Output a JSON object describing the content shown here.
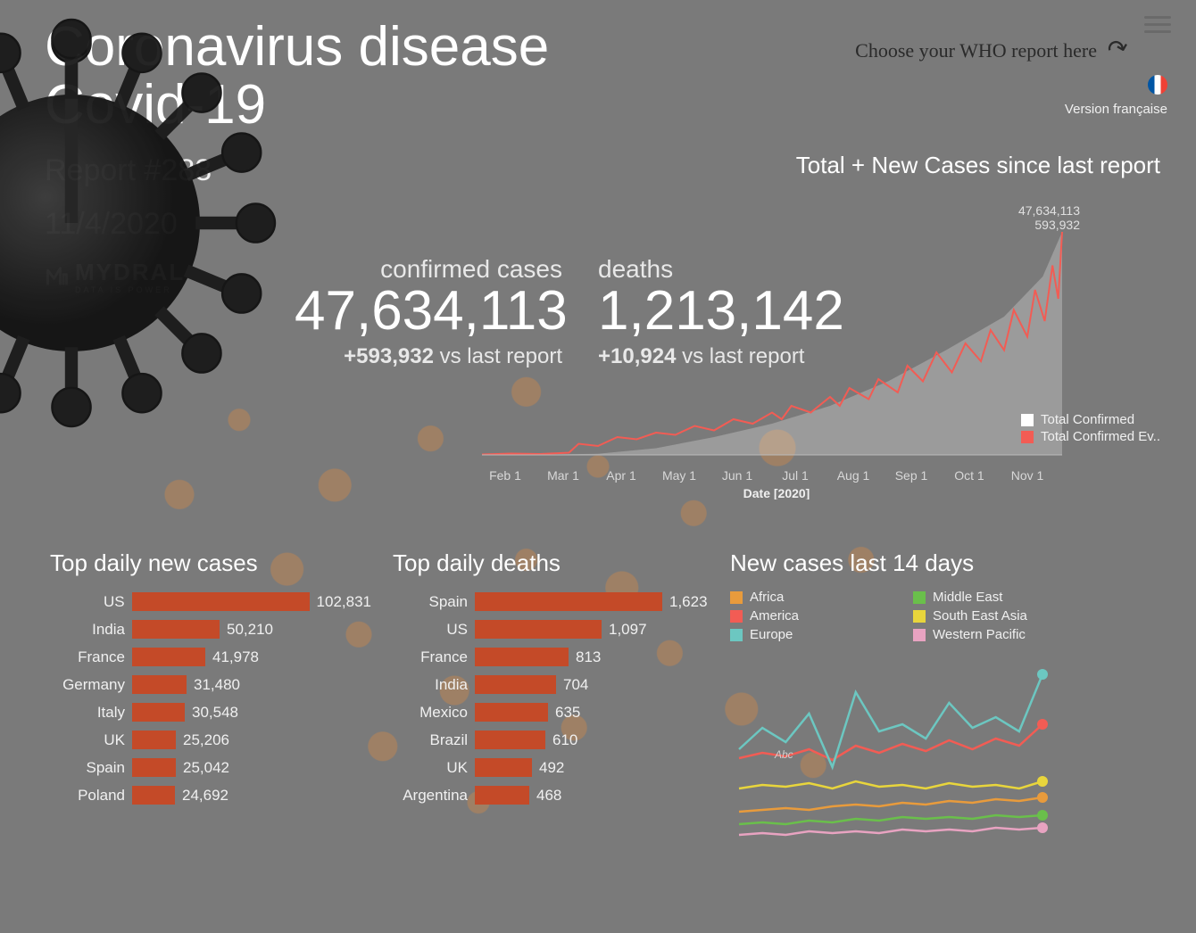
{
  "header": {
    "title_line1": "Coronavirus disease",
    "title_line2": "Covid-19",
    "report": "Report #288",
    "date": "11/4/2020",
    "who_link": "Choose your WHO report here",
    "lang_label": "Version française",
    "logo_text": "MYDRAL",
    "logo_tagline": "DATA IS POWER"
  },
  "metrics": {
    "confirmed": {
      "label": "confirmed cases",
      "value": "47,634,113",
      "delta": "+593,932",
      "delta_suffix": "vs last report"
    },
    "deaths": {
      "label": "deaths",
      "value": "1,213,142",
      "delta": "+10,924",
      "delta_suffix": "vs last report"
    }
  },
  "cases_chart": {
    "title": "Total + New Cases since last report",
    "type": "area+line",
    "x_axis_label": "Date [2020]",
    "x_ticks": [
      "Feb 1",
      "Mar 1",
      "Apr 1",
      "May 1",
      "Jun 1",
      "Jul 1",
      "Aug 1",
      "Sep 1",
      "Oct 1",
      "Nov 1"
    ],
    "end_labels": [
      "47,634,113",
      "593,932"
    ],
    "legend": [
      {
        "label": "Total Confirmed",
        "color": "#ffffff"
      },
      {
        "label": "Total Confirmed Ev..",
        "color": "#f25c54"
      }
    ],
    "area_color": "#ffffff",
    "area_opacity": 0.25,
    "line_color": "#f25c54",
    "line_width": 2,
    "ylim": [
      0,
      47634113
    ],
    "area_points": [
      [
        0,
        0
      ],
      [
        30,
        0.001
      ],
      [
        60,
        0.005
      ],
      [
        90,
        0.03
      ],
      [
        120,
        0.08
      ],
      [
        150,
        0.14
      ],
      [
        180,
        0.22
      ],
      [
        210,
        0.33
      ],
      [
        240,
        0.47
      ],
      [
        270,
        0.62
      ],
      [
        290,
        0.8
      ],
      [
        300,
        1.0
      ]
    ],
    "line_points": [
      [
        0,
        0.002
      ],
      [
        15,
        0.006
      ],
      [
        30,
        0.004
      ],
      [
        45,
        0.01
      ],
      [
        50,
        0.05
      ],
      [
        60,
        0.04
      ],
      [
        70,
        0.08
      ],
      [
        80,
        0.07
      ],
      [
        90,
        0.1
      ],
      [
        100,
        0.09
      ],
      [
        110,
        0.13
      ],
      [
        120,
        0.11
      ],
      [
        130,
        0.16
      ],
      [
        140,
        0.14
      ],
      [
        150,
        0.19
      ],
      [
        155,
        0.16
      ],
      [
        160,
        0.22
      ],
      [
        170,
        0.19
      ],
      [
        180,
        0.26
      ],
      [
        185,
        0.22
      ],
      [
        190,
        0.3
      ],
      [
        200,
        0.25
      ],
      [
        205,
        0.34
      ],
      [
        215,
        0.28
      ],
      [
        220,
        0.4
      ],
      [
        228,
        0.33
      ],
      [
        235,
        0.46
      ],
      [
        243,
        0.37
      ],
      [
        250,
        0.5
      ],
      [
        258,
        0.42
      ],
      [
        263,
        0.56
      ],
      [
        270,
        0.47
      ],
      [
        275,
        0.65
      ],
      [
        282,
        0.53
      ],
      [
        286,
        0.74
      ],
      [
        291,
        0.6
      ],
      [
        295,
        0.85
      ],
      [
        298,
        0.7
      ],
      [
        300,
        1.0
      ]
    ]
  },
  "top_cases": {
    "title": "Top daily new cases",
    "type": "bar-horizontal",
    "bar_color": "#c44a28",
    "max": 102831,
    "rows": [
      {
        "label": "US",
        "value": 102831,
        "text": "102,831"
      },
      {
        "label": "India",
        "value": 50210,
        "text": "50,210"
      },
      {
        "label": "France",
        "value": 41978,
        "text": "41,978"
      },
      {
        "label": "Germany",
        "value": 31480,
        "text": "31,480"
      },
      {
        "label": "Italy",
        "value": 30548,
        "text": "30,548"
      },
      {
        "label": "UK",
        "value": 25206,
        "text": "25,206"
      },
      {
        "label": "Spain",
        "value": 25042,
        "text": "25,042"
      },
      {
        "label": "Poland",
        "value": 24692,
        "text": "24,692"
      }
    ]
  },
  "top_deaths": {
    "title": "Top daily deaths",
    "type": "bar-horizontal",
    "bar_color": "#c44a28",
    "max": 1623,
    "rows": [
      {
        "label": "Spain",
        "value": 1623,
        "text": "1,623"
      },
      {
        "label": "US",
        "value": 1097,
        "text": "1,097"
      },
      {
        "label": "France",
        "value": 813,
        "text": "813"
      },
      {
        "label": "India",
        "value": 704,
        "text": "704"
      },
      {
        "label": "Mexico",
        "value": 635,
        "text": "635"
      },
      {
        "label": "Brazil",
        "value": 610,
        "text": "610"
      },
      {
        "label": "UK",
        "value": 492,
        "text": "492"
      },
      {
        "label": "Argentina",
        "value": 468,
        "text": "468"
      }
    ]
  },
  "regions": {
    "title": "New cases last 14 days",
    "type": "line",
    "x_count": 14,
    "abc_label": "Abc",
    "series": [
      {
        "label": "Africa",
        "color": "#e89b3c",
        "values": [
          25,
          26,
          27,
          26,
          28,
          29,
          28,
          30,
          29,
          31,
          30,
          32,
          31,
          33
        ]
      },
      {
        "label": "America",
        "color": "#f25c54",
        "values": [
          55,
          58,
          56,
          60,
          54,
          62,
          58,
          63,
          59,
          65,
          60,
          66,
          62,
          74
        ]
      },
      {
        "label": "Europe",
        "color": "#6cc7c1",
        "values": [
          60,
          72,
          64,
          80,
          50,
          92,
          70,
          74,
          66,
          86,
          72,
          78,
          70,
          102
        ]
      },
      {
        "label": "Middle East",
        "color": "#6abf4b",
        "values": [
          18,
          19,
          18,
          20,
          19,
          21,
          20,
          22,
          21,
          22,
          21,
          23,
          22,
          23
        ]
      },
      {
        "label": "South East Asia",
        "color": "#e8d53c",
        "values": [
          38,
          40,
          39,
          41,
          38,
          42,
          39,
          40,
          38,
          41,
          39,
          40,
          38,
          42
        ]
      },
      {
        "label": "Western Pacific",
        "color": "#e8a3c1",
        "values": [
          12,
          13,
          12,
          14,
          13,
          14,
          13,
          15,
          14,
          15,
          14,
          16,
          15,
          16
        ]
      }
    ],
    "ymax": 110
  }
}
